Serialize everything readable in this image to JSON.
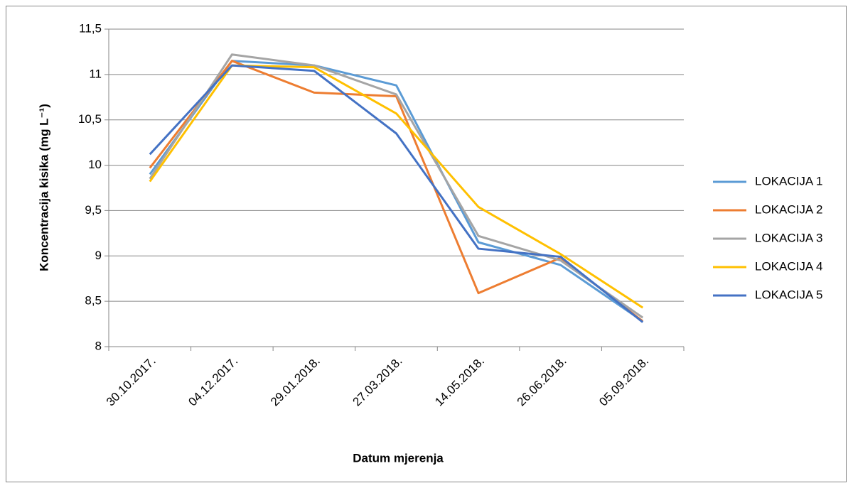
{
  "chart_data": {
    "type": "line",
    "xlabel": "Datum mjerenja",
    "ylabel": "Koncentracija kisika (mg L⁻¹)",
    "categories": [
      "30.10.2017.",
      "04.12.2017.",
      "29.01.2018.",
      "27.03.2018.",
      "14.05.2018.",
      "26.06.2018.",
      "05.09.2018."
    ],
    "series": [
      {
        "name": "LOKACIJA 1",
        "color": "#5b9bd5",
        "values": [
          9.9,
          11.15,
          11.1,
          10.88,
          9.15,
          8.9,
          8.28
        ]
      },
      {
        "name": "LOKACIJA 2",
        "color": "#ed7d31",
        "values": [
          9.97,
          11.15,
          10.8,
          10.76,
          8.59,
          8.98,
          8.28
        ]
      },
      {
        "name": "LOKACIJA 3",
        "color": "#a5a5a5",
        "values": [
          9.85,
          11.22,
          11.1,
          10.78,
          9.22,
          8.95,
          8.32
        ]
      },
      {
        "name": "LOKACIJA 4",
        "color": "#ffc000",
        "values": [
          9.82,
          11.1,
          11.08,
          10.57,
          9.54,
          9.02,
          8.43
        ]
      },
      {
        "name": "LOKACIJA 5",
        "color": "#4472c4",
        "values": [
          10.12,
          11.1,
          11.04,
          10.35,
          9.08,
          8.99,
          8.27
        ]
      }
    ],
    "ylim": [
      8,
      11.5
    ],
    "yticks": [
      8,
      {
        "value": 8.5,
        "label": "8,5"
      },
      9,
      {
        "value": 9.5,
        "label": "9,5"
      },
      10,
      {
        "value": 10.5,
        "label": "10,5"
      },
      11,
      {
        "value": 11.5,
        "label": "11,5"
      }
    ],
    "grid": true,
    "legend": "right"
  }
}
